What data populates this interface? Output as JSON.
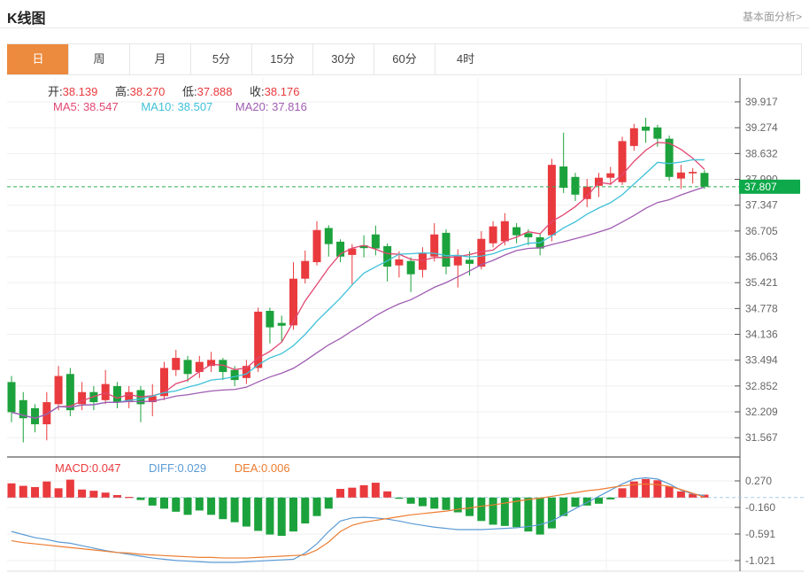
{
  "header": {
    "title": "K线图",
    "link": "基本面分析>"
  },
  "tabs": {
    "items": [
      "日",
      "周",
      "月",
      "5分",
      "15分",
      "30分",
      "60分",
      "4时"
    ],
    "selected": 0
  },
  "quote": {
    "open_label": "开:",
    "open": "38.139",
    "high_label": "高:",
    "high": "38.270",
    "low_label": "低:",
    "low": "37.888",
    "close_label": "收:",
    "close": "38.176"
  },
  "ma": {
    "ma5": "MA5: 38.547",
    "ma10": "MA10: 38.507",
    "ma20": "MA20: 37.816"
  },
  "macd_header": {
    "macd": "MACD:0.047",
    "diff": "DIFF:0.029",
    "dea": "DEA:0.006"
  },
  "colors": {
    "up": "#E93A3E",
    "down": "#1CA23C",
    "ma5": "#E24873",
    "ma10": "#3FC1D8",
    "ma20": "#A05CB2",
    "diff": "#5B9BD5",
    "dea": "#ED7D31",
    "accent_tab": "#EC8A3D",
    "last_price_tag": "#0DA94A",
    "last_price_line": "#2FAE51",
    "macd_zero_line": "#A8CCE8"
  },
  "chart_data": {
    "type": "candlestick+macd",
    "legend": [
      "MA5",
      "MA10",
      "MA20",
      "MACD",
      "DIFF",
      "DEA"
    ],
    "main": {
      "axis_ticks": [
        "39.917",
        "39.274",
        "38.632",
        "37.990",
        "37.347",
        "36.705",
        "36.063",
        "35.421",
        "34.778",
        "34.136",
        "33.494",
        "32.852",
        "32.209",
        "31.567"
      ],
      "last_price": "37.807",
      "last_price_value": 37.807,
      "candles_format": [
        "open",
        "high",
        "low",
        "close"
      ],
      "candles": [
        [
          32.95,
          33.1,
          31.95,
          32.2
        ],
        [
          32.5,
          32.7,
          31.45,
          32.05
        ],
        [
          32.3,
          32.4,
          31.7,
          31.9
        ],
        [
          31.9,
          32.7,
          31.5,
          32.45
        ],
        [
          32.4,
          33.35,
          32.25,
          33.1
        ],
        [
          33.15,
          33.3,
          32.1,
          32.25
        ],
        [
          32.4,
          32.95,
          32.25,
          32.7
        ],
        [
          32.7,
          32.85,
          32.25,
          32.45
        ],
        [
          32.5,
          33.25,
          32.4,
          32.9
        ],
        [
          32.85,
          32.95,
          32.3,
          32.45
        ],
        [
          32.45,
          32.85,
          32.3,
          32.7
        ],
        [
          32.75,
          32.85,
          31.95,
          32.4
        ],
        [
          32.45,
          32.9,
          32.1,
          32.6
        ],
        [
          32.6,
          33.45,
          32.5,
          33.3
        ],
        [
          33.25,
          33.75,
          33.1,
          33.55
        ],
        [
          33.5,
          33.6,
          32.95,
          33.15
        ],
        [
          33.2,
          33.6,
          33.05,
          33.45
        ],
        [
          33.35,
          33.7,
          33.2,
          33.5
        ],
        [
          33.5,
          33.55,
          33.0,
          33.2
        ],
        [
          33.25,
          33.35,
          32.85,
          33.0
        ],
        [
          33.05,
          33.5,
          32.9,
          33.35
        ],
        [
          33.3,
          34.8,
          33.2,
          34.7
        ],
        [
          34.72,
          34.8,
          33.91,
          34.31
        ],
        [
          34.42,
          34.6,
          33.95,
          34.35
        ],
        [
          34.36,
          35.93,
          34.25,
          35.52
        ],
        [
          35.52,
          36.22,
          35.4,
          35.96
        ],
        [
          35.93,
          36.95,
          35.85,
          36.73
        ],
        [
          36.78,
          36.85,
          36.07,
          36.38
        ],
        [
          36.44,
          36.5,
          35.93,
          36.07
        ],
        [
          36.11,
          36.38,
          35.38,
          36.27
        ],
        [
          36.35,
          36.6,
          36.05,
          36.28
        ],
        [
          36.62,
          36.84,
          36.1,
          36.27
        ],
        [
          36.33,
          36.4,
          35.45,
          35.82
        ],
        [
          35.85,
          36.2,
          35.55,
          36.0
        ],
        [
          35.96,
          36.05,
          35.19,
          35.63
        ],
        [
          35.74,
          36.3,
          35.55,
          36.16
        ],
        [
          36.07,
          36.9,
          35.95,
          36.62
        ],
        [
          36.66,
          36.75,
          35.63,
          35.82
        ],
        [
          35.85,
          36.25,
          35.3,
          36.11
        ],
        [
          35.99,
          36.2,
          35.6,
          35.89
        ],
        [
          35.82,
          36.7,
          35.75,
          36.51
        ],
        [
          36.4,
          36.95,
          36.3,
          36.82
        ],
        [
          36.45,
          37.15,
          36.35,
          36.95
        ],
        [
          36.8,
          36.9,
          36.4,
          36.6
        ],
        [
          36.65,
          36.75,
          36.35,
          36.55
        ],
        [
          36.55,
          36.65,
          36.1,
          36.27
        ],
        [
          36.6,
          38.5,
          36.45,
          38.35
        ],
        [
          38.31,
          39.15,
          37.65,
          37.78
        ],
        [
          38.05,
          38.15,
          37.45,
          37.61
        ],
        [
          37.5,
          38.0,
          37.3,
          37.81
        ],
        [
          37.83,
          38.15,
          37.55,
          38.03
        ],
        [
          38.03,
          38.3,
          37.85,
          38.14
        ],
        [
          37.92,
          39.05,
          37.85,
          38.94
        ],
        [
          38.82,
          39.37,
          38.7,
          39.26
        ],
        [
          39.3,
          39.52,
          38.9,
          39.2
        ],
        [
          39.28,
          39.35,
          38.8,
          39.0
        ],
        [
          39.0,
          39.08,
          37.95,
          38.05
        ],
        [
          38.01,
          38.35,
          37.75,
          38.16
        ],
        [
          38.139,
          38.27,
          37.888,
          38.176
        ],
        [
          38.15,
          38.22,
          37.75,
          37.807
        ]
      ]
    },
    "macd": {
      "axis_ticks": [
        "0.270",
        "-0.160",
        "-0.591",
        "-1.021"
      ],
      "hist": [
        0.23,
        0.19,
        0.17,
        0.26,
        0.15,
        0.29,
        0.13,
        0.11,
        0.08,
        0.04,
        0.01,
        -0.04,
        -0.13,
        -0.18,
        -0.23,
        -0.28,
        -0.21,
        -0.28,
        -0.35,
        -0.4,
        -0.47,
        -0.54,
        -0.6,
        -0.62,
        -0.55,
        -0.42,
        -0.3,
        -0.18,
        0.14,
        0.16,
        0.2,
        0.24,
        0.1,
        -0.02,
        -0.1,
        -0.14,
        -0.18,
        -0.2,
        -0.24,
        -0.3,
        -0.38,
        -0.44,
        -0.46,
        -0.48,
        -0.55,
        -0.6,
        -0.5,
        -0.3,
        -0.15,
        -0.13,
        -0.1,
        -0.03,
        0.15,
        0.26,
        0.3,
        0.28,
        0.18,
        0.1,
        0.06,
        0.047
      ],
      "diff": [
        -0.55,
        -0.6,
        -0.65,
        -0.68,
        -0.72,
        -0.74,
        -0.78,
        -0.82,
        -0.86,
        -0.89,
        -0.92,
        -0.95,
        -0.98,
        -1.0,
        -1.02,
        -1.03,
        -1.04,
        -1.05,
        -1.05,
        -1.05,
        -1.04,
        -1.03,
        -1.02,
        -1.01,
        -1.0,
        -0.9,
        -0.75,
        -0.55,
        -0.38,
        -0.33,
        -0.32,
        -0.33,
        -0.35,
        -0.38,
        -0.42,
        -0.45,
        -0.48,
        -0.5,
        -0.52,
        -0.52,
        -0.52,
        -0.51,
        -0.5,
        -0.49,
        -0.47,
        -0.44,
        -0.38,
        -0.28,
        -0.18,
        -0.08,
        0.02,
        0.12,
        0.22,
        0.3,
        0.32,
        0.3,
        0.22,
        0.12,
        0.06,
        0.029
      ],
      "dea": [
        -0.7,
        -0.73,
        -0.75,
        -0.77,
        -0.79,
        -0.81,
        -0.83,
        -0.85,
        -0.87,
        -0.89,
        -0.9,
        -0.92,
        -0.93,
        -0.94,
        -0.95,
        -0.96,
        -0.97,
        -0.97,
        -0.98,
        -0.98,
        -0.98,
        -0.97,
        -0.96,
        -0.95,
        -0.94,
        -0.93,
        -0.85,
        -0.72,
        -0.55,
        -0.45,
        -0.4,
        -0.37,
        -0.34,
        -0.31,
        -0.28,
        -0.26,
        -0.24,
        -0.22,
        -0.19,
        -0.17,
        -0.14,
        -0.12,
        -0.09,
        -0.06,
        -0.03,
        -0.01,
        0.02,
        0.05,
        0.08,
        0.11,
        0.13,
        0.16,
        0.19,
        0.21,
        0.22,
        0.21,
        0.18,
        0.13,
        0.07,
        0.006
      ]
    }
  }
}
